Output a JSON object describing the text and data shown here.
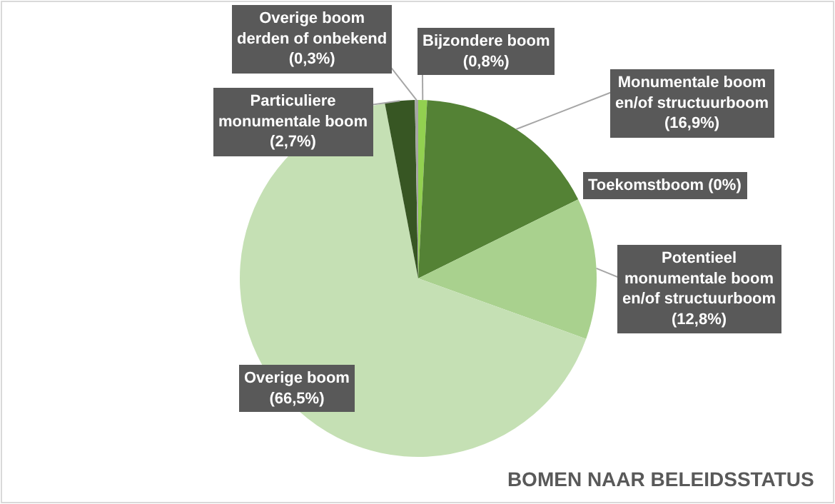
{
  "chart_data": {
    "type": "pie",
    "title": "BOMEN NAAR BELEIDSSTATUS",
    "categories": [
      "Bijzondere boom",
      "Monumentale boom en/of structuurboom",
      "Toekomstboom",
      "Potentieel monumentale boom en/of structuurboom",
      "Overige boom",
      "Particuliere monumentale boom",
      "Overige boom derden of onbekend"
    ],
    "values": [
      0.8,
      16.9,
      0,
      12.8,
      66.5,
      2.7,
      0.3
    ],
    "colors": [
      "#92d050",
      "#548235",
      "#70ad47",
      "#a9d18e",
      "#c5e0b4",
      "#375623",
      "#a5a5a5"
    ],
    "value_labels": [
      "(0,8%)",
      "(16,9%)",
      "(0%)",
      "(12,8%)",
      "(66,5%)",
      "(2,7%)",
      "(0,3%)"
    ]
  }
}
